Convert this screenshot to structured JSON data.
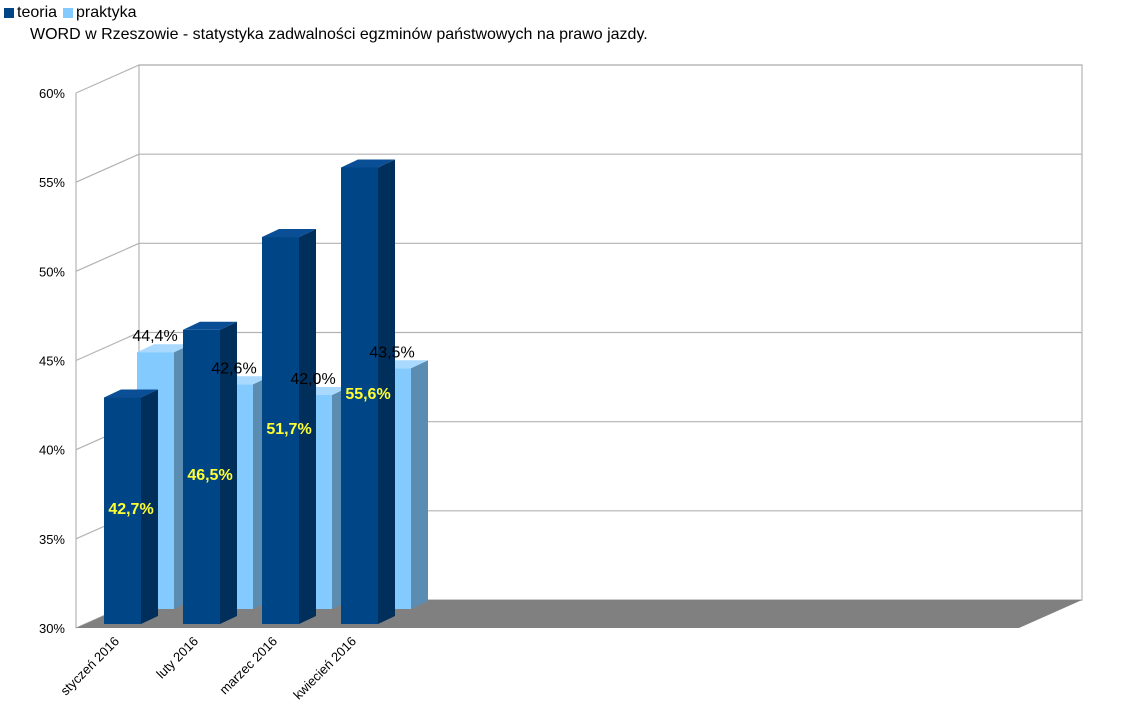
{
  "chart_data": {
    "type": "bar",
    "title": "WORD w Rzeszowie - statystyka zadwalności egzminów państwowych na prawo jazdy.",
    "xlabel": "",
    "ylabel": "",
    "categories": [
      "styczeń 2016",
      "luty 2016",
      "marzec 2016",
      "kwiecień 2016"
    ],
    "series": [
      {
        "name": "teoria",
        "values": [
          42.7,
          46.5,
          51.7,
          55.6
        ],
        "labels": [
          "42,7%",
          "46,5%",
          "51,7%",
          "55,6%"
        ],
        "color": "#004586"
      },
      {
        "name": "praktyka",
        "values": [
          44.4,
          42.6,
          42.0,
          43.5
        ],
        "labels": [
          "44,4%",
          "42,6%",
          "42,0%",
          "43,5%"
        ],
        "color": "#83caff"
      }
    ],
    "ylim": [
      30,
      60
    ],
    "yticks": [
      30,
      35,
      40,
      45,
      50,
      55,
      60
    ],
    "ytick_labels": [
      "30%",
      "35%",
      "40%",
      "45%",
      "50%",
      "55%",
      "60%"
    ],
    "grid": true,
    "legend_position": "top-left",
    "three_d": true
  }
}
